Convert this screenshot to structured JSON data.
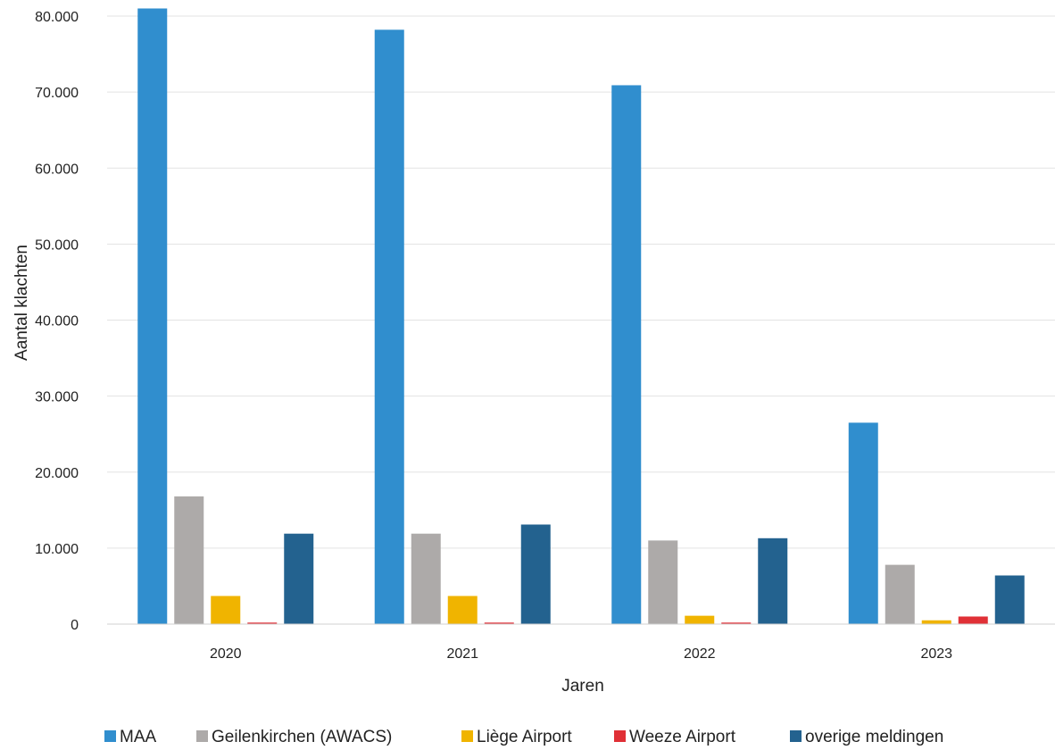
{
  "chart_data": {
    "type": "bar",
    "title": "",
    "xlabel": "Jaren",
    "ylabel": "Aantal klachten",
    "categories": [
      "2020",
      "2021",
      "2022",
      "2023"
    ],
    "ylim": [
      0,
      80000
    ],
    "yticks": [
      0,
      10000,
      20000,
      30000,
      40000,
      50000,
      60000,
      70000,
      80000
    ],
    "ytick_labels": [
      "0",
      "10.000",
      "20.000",
      "30.000",
      "40.000",
      "50.000",
      "60.000",
      "70.000",
      "80.000"
    ],
    "grid": true,
    "legend_position": "bottom",
    "series": [
      {
        "name": "MAA",
        "color": "#308ECE",
        "values": [
          81000,
          78200,
          70900,
          26500
        ]
      },
      {
        "name": "Geilenkirchen (AWACS)",
        "color": "#ADAAA9",
        "values": [
          16800,
          11900,
          11000,
          7800
        ]
      },
      {
        "name": "Liège Airport",
        "color": "#F0B400",
        "values": [
          3700,
          3700,
          1100,
          500
        ]
      },
      {
        "name": "Weeze Airport",
        "color": "#E03036",
        "values": [
          200,
          200,
          200,
          1000
        ]
      },
      {
        "name": "overige meldingen",
        "color": "#23628F",
        "values": [
          11900,
          13100,
          11300,
          6400
        ]
      }
    ]
  }
}
